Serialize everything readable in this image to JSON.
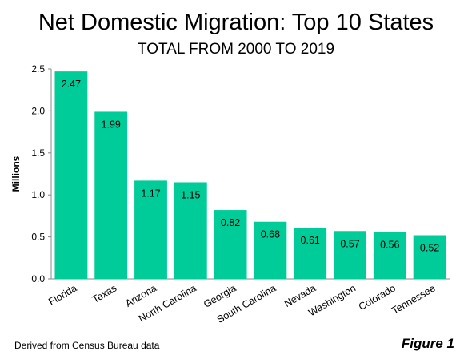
{
  "chart_data": {
    "type": "bar",
    "title": "Net Domestic Migration: Top 10 States",
    "subtitle": "TOTAL FROM 2000 TO 2019",
    "ylabel": "Millions",
    "xlabel": "",
    "categories": [
      "Florida",
      "Texas",
      "Arizona",
      "North Carolina",
      "Georgia",
      "South Carolina",
      "Nevada",
      "Washington",
      "Colorado",
      "Tennessee"
    ],
    "values": [
      2.47,
      1.99,
      1.17,
      1.15,
      0.82,
      0.68,
      0.61,
      0.57,
      0.56,
      0.52
    ],
    "data_labels": [
      "2.47",
      "1.99",
      "1.17",
      "1.15",
      "0.82",
      "0.68",
      "0.61",
      "0.57",
      "0.56",
      "0.52"
    ],
    "ylim": [
      0,
      2.5
    ],
    "yticks": [
      "0.0",
      "0.5",
      "1.0",
      "1.5",
      "2.0",
      "2.5"
    ],
    "grid": false,
    "legend": "none",
    "bar_color": "#00cc99"
  },
  "footer": {
    "source": "Derived from Census Bureau data",
    "figure_label": "Figure 1"
  }
}
